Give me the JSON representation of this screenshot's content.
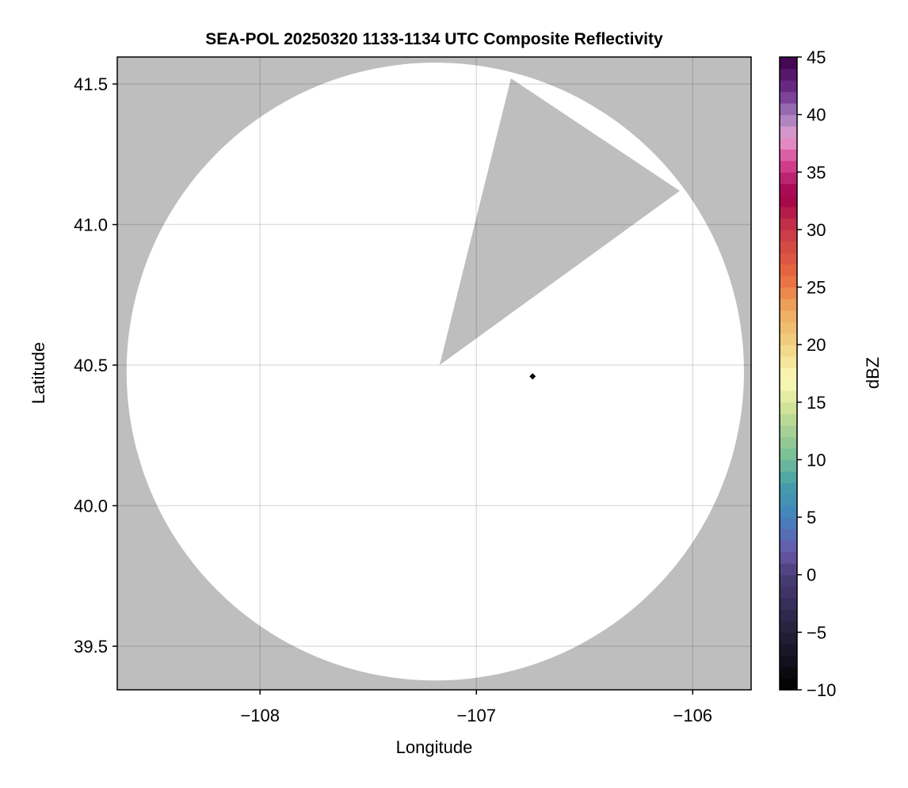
{
  "chart_data": {
    "type": "heatmap",
    "title": "SEA-POL 20250320 1133-1134 UTC Composite Reflectivity",
    "xlabel": "Longitude",
    "ylabel": "Latitude",
    "xlim": [
      -108.66,
      -105.73
    ],
    "ylim": [
      39.345,
      41.596
    ],
    "xticks": [
      -108,
      -107,
      -106
    ],
    "xtick_labels": [
      "−108",
      "−107",
      "−106"
    ],
    "yticks": [
      39.5,
      40.0,
      40.5,
      41.0,
      41.5
    ],
    "ytick_labels": [
      "39.5",
      "40.0",
      "40.5",
      "41.0",
      "41.5"
    ],
    "grid": true,
    "background_color": "#bebebe",
    "coverage_color": "#ffffff",
    "radar_coverage": {
      "center": [
        -107.19,
        40.477
      ],
      "radius_lon": 1.427,
      "radius_lat": 1.099,
      "blocked_sector": [
        [
          -107.17,
          40.5
        ],
        [
          -106.84,
          41.52
        ],
        [
          -106.06,
          41.12
        ]
      ]
    },
    "marker": {
      "lon": -106.74,
      "lat": 40.46,
      "shape": "diamond",
      "color": "#000000"
    },
    "colorbar": {
      "label": "dBZ",
      "range": [
        -10,
        45
      ],
      "step": 1,
      "ticks": [
        -10,
        -5,
        0,
        5,
        10,
        15,
        20,
        25,
        30,
        35,
        40,
        45
      ],
      "tick_labels": [
        "−10",
        "−5",
        "0",
        "5",
        "10",
        "15",
        "20",
        "25",
        "30",
        "35",
        "40",
        "45"
      ],
      "anchors": [
        [
          -10,
          "#000000"
        ],
        [
          -5,
          "#25203a"
        ],
        [
          0,
          "#4a3d78"
        ],
        [
          2,
          "#6a58a8"
        ],
        [
          5,
          "#4482bf"
        ],
        [
          8,
          "#44a0a8"
        ],
        [
          10,
          "#72bc98"
        ],
        [
          13,
          "#b0d494"
        ],
        [
          15,
          "#dce69a"
        ],
        [
          17,
          "#fafab8"
        ],
        [
          20,
          "#f2d282"
        ],
        [
          23,
          "#eea85e"
        ],
        [
          26,
          "#e86a40"
        ],
        [
          30,
          "#c83848"
        ],
        [
          33,
          "#a0004a"
        ],
        [
          36,
          "#d84898"
        ],
        [
          38,
          "#e6a0d0"
        ],
        [
          40,
          "#a07cbc"
        ],
        [
          42,
          "#70308c"
        ],
        [
          45,
          "#3c0048"
        ]
      ]
    }
  }
}
